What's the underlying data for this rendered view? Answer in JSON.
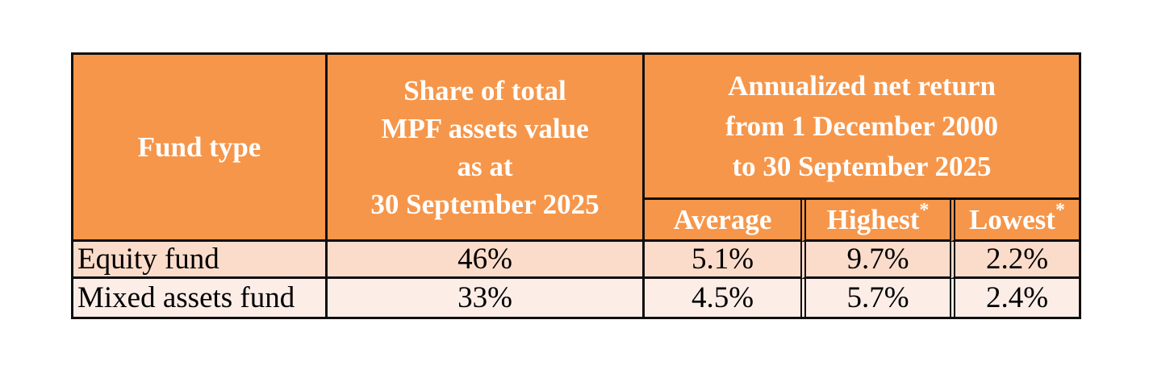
{
  "table": {
    "header": {
      "fund_type": "Fund type",
      "share": "Share of total\nMPF assets value\nas at\n30 September 2025",
      "annualized_group": "Annualized net return\nfrom 1 December 2000\nto 30 September 2025",
      "sub_headers": [
        {
          "label": "Average",
          "footnote": ""
        },
        {
          "label": "Highest",
          "footnote": "*"
        },
        {
          "label": "Lowest",
          "footnote": "*"
        }
      ]
    },
    "rows": [
      {
        "fund_type": "Equity fund",
        "share": "46%",
        "average": "5.1%",
        "highest": "9.7%",
        "lowest": "2.2%"
      },
      {
        "fund_type": "Mixed assets fund",
        "share": "33%",
        "average": "4.5%",
        "highest": "5.7%",
        "lowest": "2.4%"
      }
    ],
    "colors": {
      "header_bg": "#F6964A",
      "row_equity_bg": "#FBDCCB",
      "row_mixed_bg": "#FCEDE7",
      "border": "#0F0F0F",
      "header_text": "#FFFFFF",
      "body_text": "#000000"
    }
  },
  "chart_data": {
    "type": "table",
    "title": "",
    "column_groups": [
      {
        "label": "Fund type"
      },
      {
        "label": "Share of total MPF assets value as at 30 September 2025"
      },
      {
        "label": "Annualized net return from 1 December 2000 to 30 September 2025",
        "children": [
          "Average",
          "Highest*",
          "Lowest*"
        ]
      }
    ],
    "rows": [
      [
        "Equity fund",
        "46%",
        "5.1%",
        "9.7%",
        "2.2%"
      ],
      [
        "Mixed assets fund",
        "33%",
        "4.5%",
        "5.7%",
        "2.4%"
      ]
    ]
  }
}
